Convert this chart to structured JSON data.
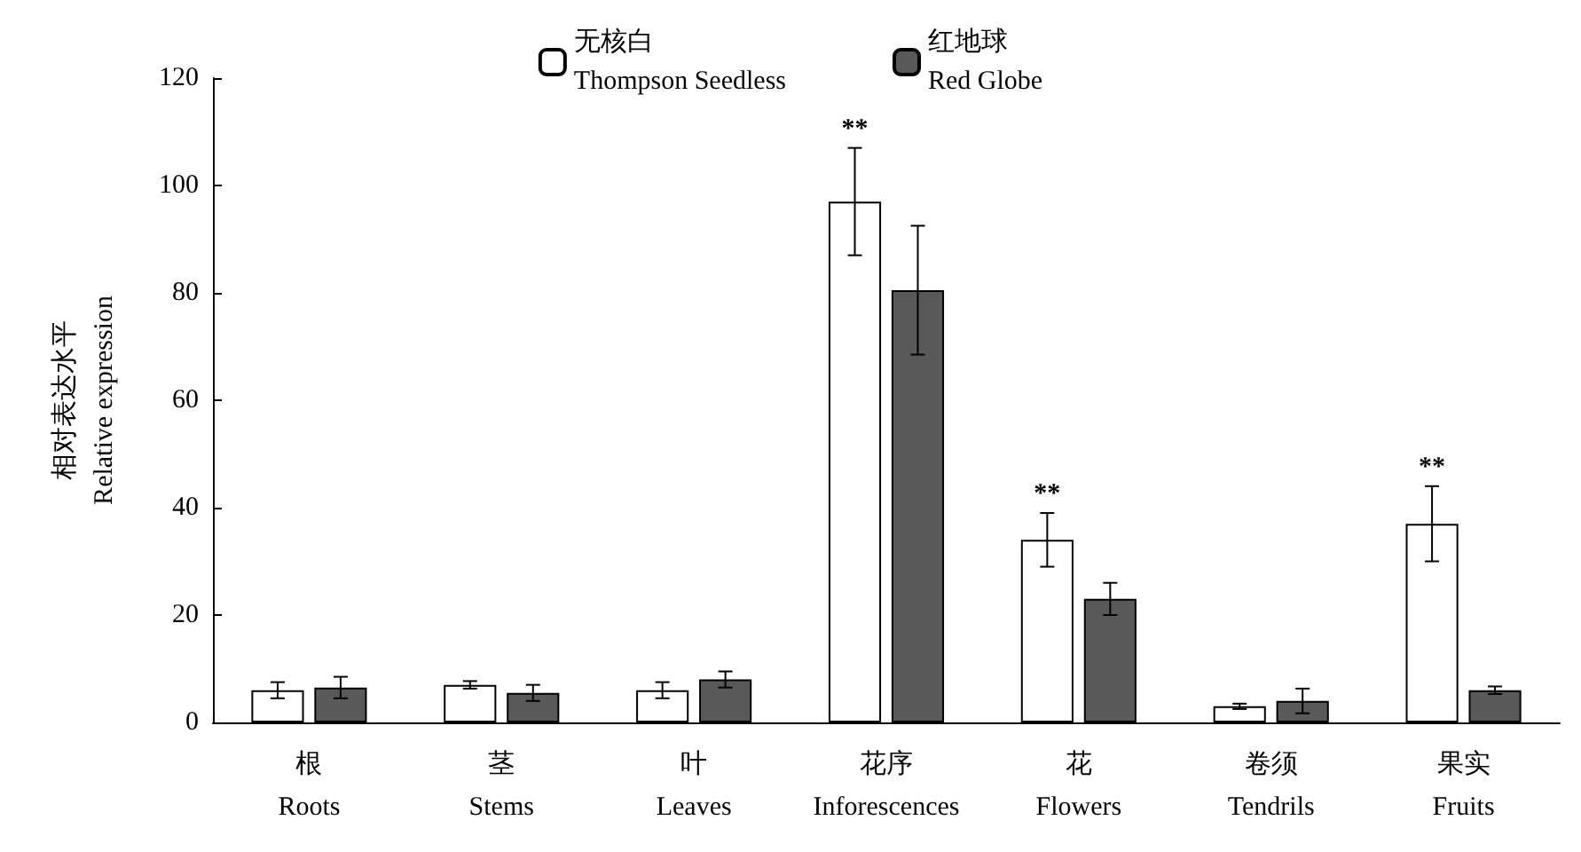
{
  "chart_data": {
    "type": "bar",
    "ylabel": "相对表达水平\nRelative expression",
    "categories": [
      "根\nRoots",
      "茎\nStems",
      "叶\nLeaves",
      "花序\nInforescences",
      "花\nFlowers",
      "卷须\nTendrils",
      "果实\nFruits"
    ],
    "series": [
      {
        "name": "无核白\nThompson Seedless",
        "color": "#ffffff",
        "values": [
          6,
          7,
          6,
          97,
          34,
          3,
          37
        ],
        "errors": [
          1.5,
          0.7,
          1.5,
          10,
          5,
          0.5,
          7
        ]
      },
      {
        "name": "红地球\nRed Globe",
        "color": "#595959",
        "values": [
          6.5,
          5.5,
          8,
          80.5,
          23,
          4,
          6
        ],
        "errors": [
          2,
          1.5,
          1.5,
          12,
          3,
          2.3,
          0.7
        ]
      }
    ],
    "annotations": [
      {
        "text": "**",
        "x": "花序\nInforescences",
        "y": 97
      },
      {
        "text": "**",
        "x": "花\nFlowers",
        "y": 34
      },
      {
        "text": "**",
        "x": "果实\nFruits",
        "y": 37
      }
    ],
    "ylim": [
      0,
      120
    ],
    "yticks": [
      0,
      20,
      40,
      60,
      80,
      100,
      120
    ],
    "grid": false,
    "legend": "top"
  }
}
